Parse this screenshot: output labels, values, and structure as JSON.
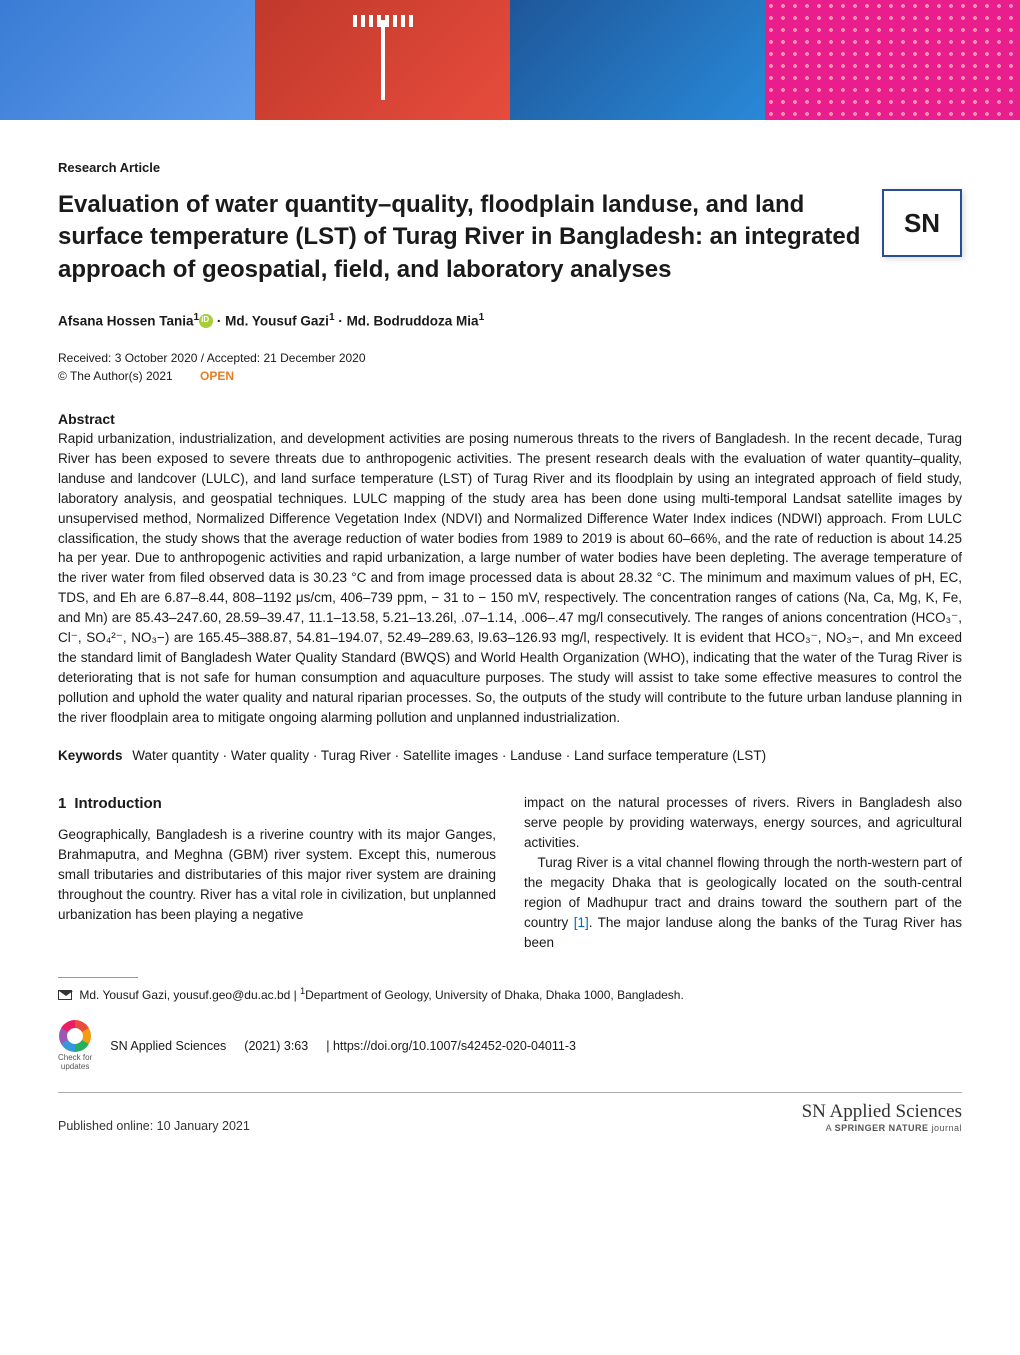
{
  "banner": {
    "colors": [
      "#3a7bd5",
      "#c0392b",
      "#1e5799",
      "#e91e8c"
    ]
  },
  "article_type": "Research Article",
  "title": "Evaluation of water quantity–quality, floodplain landuse, and land surface temperature (LST) of Turag River in Bangladesh: an integrated approach of geospatial, field, and laboratory analyses",
  "logo_text": "SN",
  "authors": {
    "a1": "Afsana Hossen Tania",
    "a1_aff": "1",
    "sep": " · ",
    "a2": "Md. Yousuf Gazi",
    "a2_aff": "1",
    "a3": "Md. Bodruddoza Mia",
    "a3_aff": "1"
  },
  "dates": "Received: 3 October 2020 / Accepted: 21 December 2020",
  "copyright": "© The Author(s) 2021",
  "open_label": "OPEN",
  "abstract_heading": "Abstract",
  "abstract_text": "Rapid urbanization, industrialization, and development activities are posing numerous threats to the rivers of Bangladesh. In the recent decade, Turag River has been exposed to severe threats due to anthropogenic activities. The present research deals with the evaluation of water quantity–quality, landuse and landcover (LULC), and land surface temperature (LST) of Turag River and its floodplain by using an integrated approach of field study, laboratory analysis, and geospatial techniques. LULC mapping of the study area has been done using multi-temporal Landsat satellite images by unsupervised method, Normalized Difference Vegetation Index (NDVI) and Normalized Difference Water Index indices (NDWI) approach. From LULC classification, the study shows that the average reduction of water bodies from 1989 to 2019 is about 60–66%, and the rate of reduction is about 14.25 ha per year. Due to anthropogenic activities and rapid urbanization, a large number of water bodies have been depleting. The average temperature of the river water from filed observed data is 30.23 °C and from image processed data is about 28.32 °C. The minimum and maximum values of pH, EC, TDS, and Eh are 6.87–8.44, 808–1192 μs/cm, 406–739 ppm, − 31 to − 150 mV, respectively. The concentration ranges of cations (Na, Ca, Mg, K, Fe, and Mn) are 85.43–247.60, 28.59–39.47, 11.1–13.58, 5.21–13.26l, .07–1.14, .006–.47 mg/l consecutively. The ranges of anions concentration (HCO₃⁻, Cl⁻, SO₄²⁻, NO₃−) are 165.45–388.87, 54.81–194.07, 52.49–289.63, l9.63–126.93 mg/l, respectively. It is evident that HCO₃⁻, NO₃−, and Mn exceed the standard limit of Bangladesh Water Quality Standard (BWQS) and World Health Organization (WHO), indicating that the water of the Turag River is deteriorating that is not safe for human consumption and aquaculture purposes. The study will assist to take some effective measures to control the pollution and uphold the water quality and natural riparian processes. So, the outputs of the study will contribute to the future urban landuse planning in the river floodplain area to mitigate ongoing alarming pollution and unplanned industrialization.",
  "keywords_label": "Keywords",
  "keywords_text": "Water quantity · Water quality · Turag River · Satellite images · Landuse · Land surface temperature (LST)",
  "intro": {
    "number": "1",
    "heading": "Introduction",
    "p1": "Geographically, Bangladesh is a riverine country with its major Ganges, Brahmaputra, and Meghna (GBM) river system. Except this, numerous small tributaries and distributaries of this major river system are draining throughout the country. River has a vital role in civilization, but unplanned urbanization has been playing a negative",
    "p2a": "impact on the natural processes of rivers. Rivers in Bangladesh also serve people by providing waterways, energy sources, and agricultural activities.",
    "p2b_before": "Turag River is a vital channel flowing through the north-western part of the megacity Dhaka that is geologically located on the south-central region of Madhupur tract and drains toward the southern part of the country ",
    "cite1": "[1]",
    "p2b_after": ". The major landuse along the banks of the Turag River has been"
  },
  "corresp": {
    "name": "Md. Yousuf Gazi, yousuf.geo@du.ac.bd",
    "aff_sep": " | ",
    "aff_num": "1",
    "aff_text": "Department of Geology, University of Dhaka, Dhaka 1000, Bangladesh."
  },
  "footer_meta": {
    "check_label": "Check for\nupdates",
    "journal": "SN Applied Sciences",
    "issue": "(2021) 3:63",
    "doi_sep": "| ",
    "doi": "https://doi.org/10.1007/s42452-020-04011-3"
  },
  "pub_date": "Published online: 10 January 2021",
  "journal_footer": {
    "name": "SN Applied Sciences",
    "sub_prefix": "A ",
    "sub_bold": "SPRINGER NATURE",
    "sub_suffix": " journal"
  }
}
